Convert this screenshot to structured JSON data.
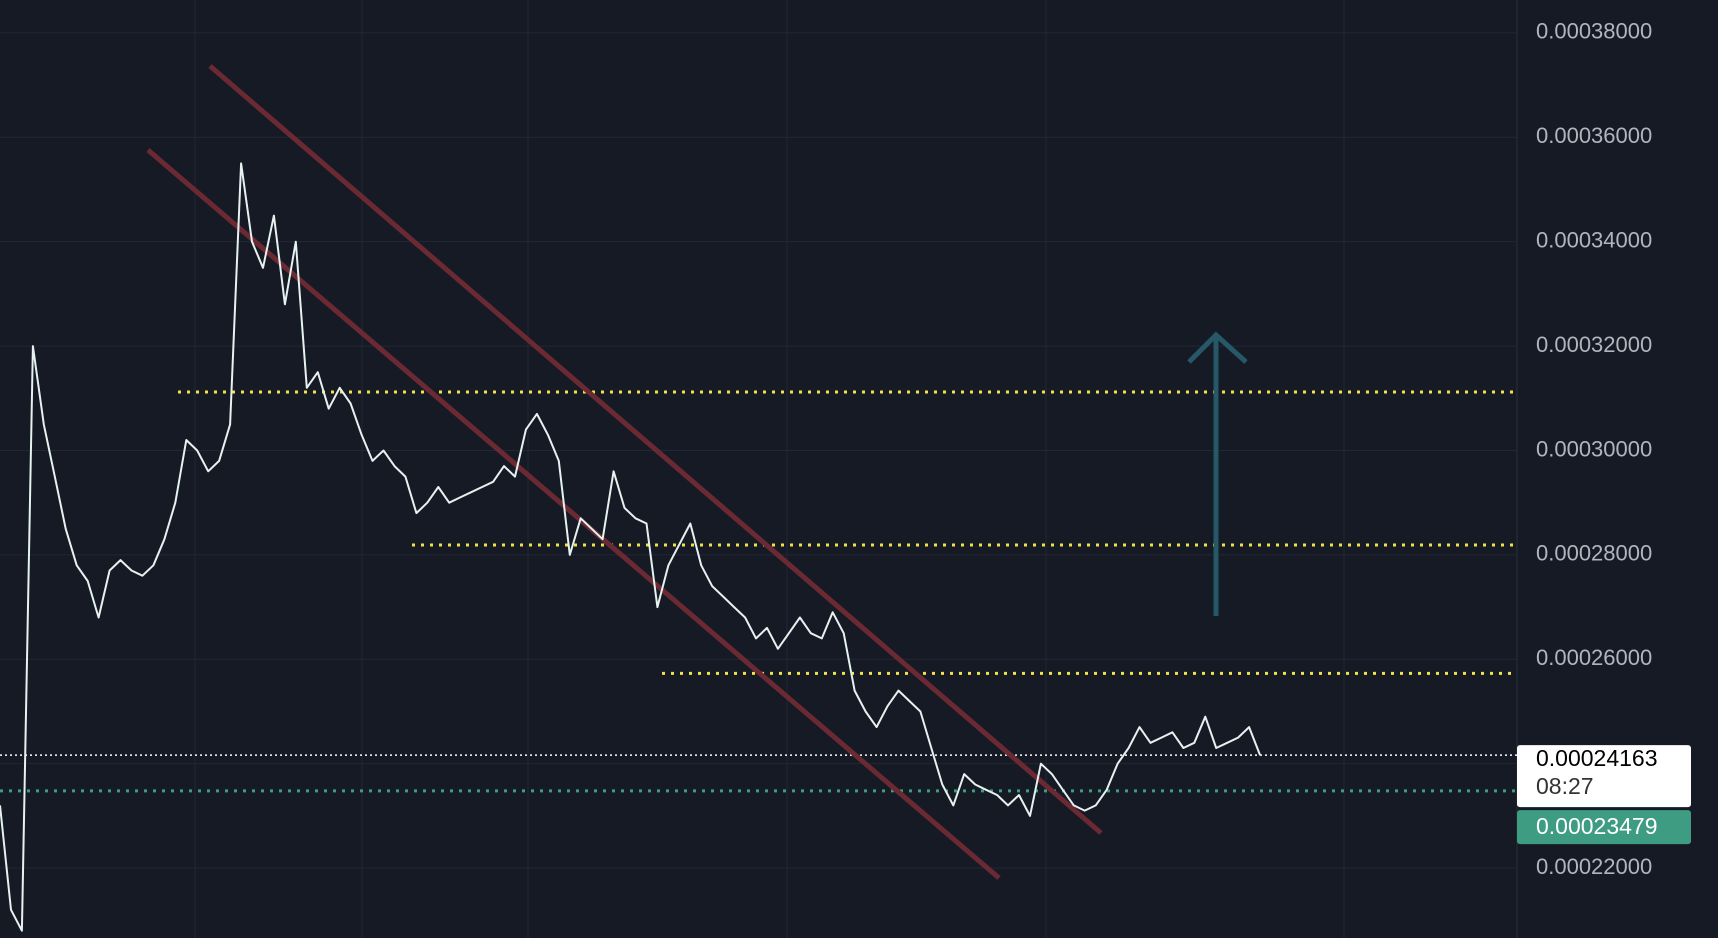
{
  "chart_data": {
    "type": "line",
    "series": [
      {
        "color": "#e6f2ef",
        "values": [
          0.000232,
          0.000212,
          0.000208,
          0.00032,
          0.000305,
          0.000295,
          0.000285,
          0.000278,
          0.000275,
          0.000268,
          0.000277,
          0.000279,
          0.000277,
          0.000276,
          0.000278,
          0.000283,
          0.00029,
          0.000302,
          0.0003,
          0.000296,
          0.000298,
          0.000305,
          0.000355,
          0.00034,
          0.000335,
          0.000345,
          0.000328,
          0.00034,
          0.000312,
          0.000315,
          0.000308,
          0.000312,
          0.000309,
          0.000303,
          0.000298,
          0.0003,
          0.000297,
          0.000295,
          0.000288,
          0.00029,
          0.000293,
          0.00029,
          0.000291,
          0.000292,
          0.000293,
          0.000294,
          0.000297,
          0.000295,
          0.000304,
          0.000307,
          0.000303,
          0.000298,
          0.00028,
          0.000287,
          0.000285,
          0.000283,
          0.000296,
          0.000289,
          0.000287,
          0.000286,
          0.00027,
          0.000278,
          0.000282,
          0.000286,
          0.000278,
          0.000274,
          0.000272,
          0.00027,
          0.000268,
          0.000264,
          0.000266,
          0.000262,
          0.000265,
          0.000268,
          0.000265,
          0.000264,
          0.000269,
          0.000265,
          0.000254,
          0.00025,
          0.000247,
          0.000251,
          0.000254,
          0.000252,
          0.00025,
          0.000243,
          0.000236,
          0.000232,
          0.000238,
          0.000236,
          0.000235,
          0.000234,
          0.000232,
          0.000234,
          0.00023,
          0.00024,
          0.000238,
          0.000235,
          0.000232,
          0.000231,
          0.000232,
          0.000235,
          0.00024,
          0.000243,
          0.000247,
          0.000244,
          0.000245,
          0.000246,
          0.000243,
          0.000244,
          0.000249,
          0.000243,
          0.000244,
          0.000245,
          0.000247,
          0.00024163
        ]
      }
    ],
    "ylim": [
      0.0002066,
      0.0003863
    ],
    "yticks": [
      {
        "value": 0.00022,
        "label": "0.00022000"
      },
      {
        "value": 0.00024,
        "label": "0.00024000"
      },
      {
        "value": 0.00026,
        "label": "0.00026000"
      },
      {
        "value": 0.00028,
        "label": "0.00028000"
      },
      {
        "value": 0.0003,
        "label": "0.00030000"
      },
      {
        "value": 0.00032,
        "label": "0.00032000"
      },
      {
        "value": 0.00034,
        "label": "0.00034000"
      },
      {
        "value": 0.00036,
        "label": "0.00036000"
      },
      {
        "value": 0.00038,
        "label": "0.00038000"
      }
    ],
    "grid": true,
    "levels": [
      {
        "value": 0.0003112,
        "color": "#f2e24a"
      },
      {
        "value": 0.0002819,
        "color": "#f2e24a"
      },
      {
        "value": 0.0002573,
        "color": "#f2e24a"
      }
    ],
    "last_price": {
      "value": 0.00024163,
      "label": "0.00024163"
    },
    "countdown": "08:27",
    "marker_price": {
      "value": 0.00023479,
      "label": "0.00023479"
    }
  }
}
